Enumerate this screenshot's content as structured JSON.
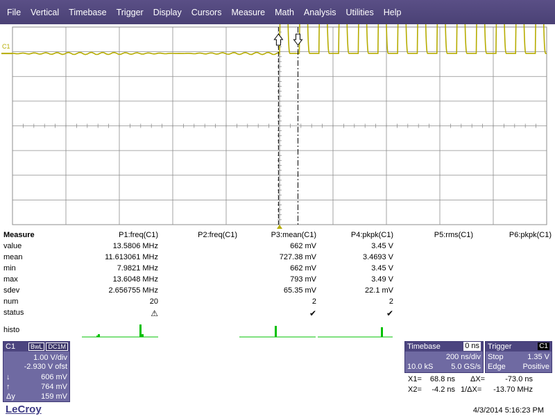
{
  "menubar": [
    "File",
    "Vertical",
    "Timebase",
    "Trigger",
    "Display",
    "Cursors",
    "Measure",
    "Math",
    "Analysis",
    "Utilities",
    "Help"
  ],
  "colors": {
    "trace": "#b6ac00",
    "menubar": "#4e4580",
    "panel": "#6f6aa2",
    "grid": "#8c8c8c",
    "histo": "#00c000"
  },
  "waveform": {
    "channel_label": "C1",
    "trigger_time_ns": 0,
    "cursor_x1_ns": 68.8,
    "cursor_x2_ns": -4.2,
    "vdiv_V": 1.0,
    "offset_V": -2.93,
    "timebase_ns_per_div": 200,
    "low_level_V": 0.0,
    "high_level_V": 2.9,
    "frequency_MHz": 13.58
  },
  "measure": {
    "title": "Measure",
    "columns": [
      "P1:freq(C1)",
      "P2:freq(C1)",
      "P3:mean(C1)",
      "P4:pkpk(C1)",
      "P5:rms(C1)",
      "P6:pkpk(C1)"
    ],
    "rows": [
      {
        "label": "value",
        "cells": [
          "13.5806 MHz",
          "",
          "662 mV",
          "3.45 V",
          "",
          ""
        ]
      },
      {
        "label": "mean",
        "cells": [
          "11.613061 MHz",
          "",
          "727.38 mV",
          "3.4693 V",
          "",
          ""
        ]
      },
      {
        "label": "min",
        "cells": [
          "7.9821 MHz",
          "",
          "662 mV",
          "3.45 V",
          "",
          ""
        ]
      },
      {
        "label": "max",
        "cells": [
          "13.6048 MHz",
          "",
          "793 mV",
          "3.49 V",
          "",
          ""
        ]
      },
      {
        "label": "sdev",
        "cells": [
          "2.656755 MHz",
          "",
          "65.35 mV",
          "22.1 mV",
          "",
          ""
        ]
      },
      {
        "label": "num",
        "cells": [
          "20",
          "",
          "2",
          "2",
          "",
          ""
        ]
      },
      {
        "label": "status",
        "cells": [
          "warning-icon",
          "",
          "check-icon",
          "check-icon",
          "",
          ""
        ]
      }
    ],
    "histo_label": "histo"
  },
  "channel": {
    "name": "C1",
    "bw": "BwL",
    "coupling": "DC1M",
    "vdiv": "1.00 V/div",
    "offset": "-2.930 V ofst",
    "down_label": "↓",
    "down_value": "606 mV",
    "up_label": "↑",
    "up_value": "764 mV",
    "dy_label": "Δy",
    "dy_value": "159 mV"
  },
  "timebase": {
    "title": "Timebase",
    "delay": "0 ns",
    "tdiv": "200 ns/div",
    "samples": "10.0 kS",
    "rate": "5.0 GS/s"
  },
  "trigger": {
    "title": "Trigger",
    "badge": "C1",
    "mode": "Stop",
    "level": "1.35 V",
    "type": "Edge",
    "slope": "Positive"
  },
  "cursors": {
    "x1_label": "X1=",
    "x1_value": "68.8 ns",
    "dx_label": "ΔX=",
    "dx_value": "-73.0 ns",
    "x2_label": "X2=",
    "x2_value": "-4.2 ns",
    "inv_dx_label": "1/ΔX=",
    "inv_dx_value": "-13.70 MHz"
  },
  "brand": "LeCroy",
  "datetime": "4/3/2014 5:16:23 PM"
}
